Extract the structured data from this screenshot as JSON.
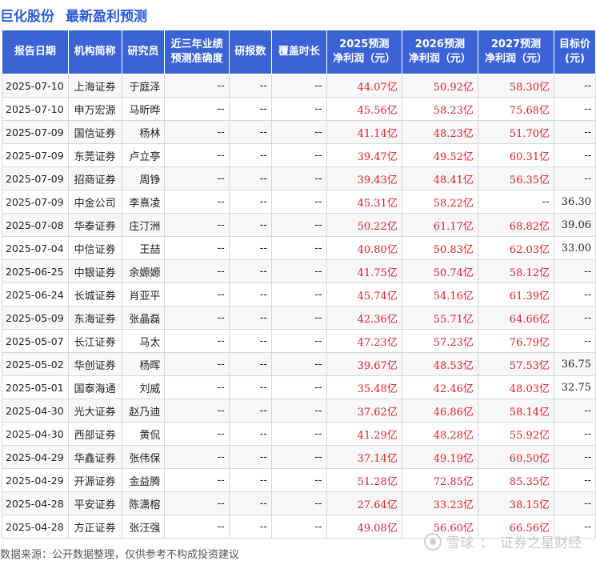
{
  "title": {
    "stock_name": "巨化股份",
    "subtitle": "最新盈利预测"
  },
  "table": {
    "headers": {
      "date": "报告日期",
      "org": "机构简称",
      "researcher": "研究员",
      "accuracy_line1": "近三年业绩",
      "accuracy_line2": "预测准确度",
      "report_count": "研报数",
      "coverage": "覆盖时长",
      "y2025_line1": "2025预测",
      "y2025_line2": "净利润（元）",
      "y2026_line1": "2026预测",
      "y2026_line2": "净利润（元）",
      "y2027_line1": "2027预测",
      "y2027_line2": "净利润（元）",
      "target_line1": "目标价",
      "target_line2": "(元)"
    },
    "rows": [
      {
        "date": "2025-07-10",
        "org": "上海证券",
        "researcher": "于庭泽",
        "accuracy": "--",
        "reports": "--",
        "coverage": "--",
        "p2025": "44.07亿",
        "p2026": "50.92亿",
        "p2027": "58.30亿",
        "target": "--"
      },
      {
        "date": "2025-07-10",
        "org": "申万宏源",
        "researcher": "马昕晔",
        "accuracy": "--",
        "reports": "--",
        "coverage": "--",
        "p2025": "45.56亿",
        "p2026": "58.23亿",
        "p2027": "75.68亿",
        "target": "--"
      },
      {
        "date": "2025-07-09",
        "org": "国信证券",
        "researcher": "杨林",
        "accuracy": "--",
        "reports": "--",
        "coverage": "--",
        "p2025": "41.14亿",
        "p2026": "48.23亿",
        "p2027": "51.70亿",
        "target": "--"
      },
      {
        "date": "2025-07-09",
        "org": "东莞证券",
        "researcher": "卢立亭",
        "accuracy": "--",
        "reports": "--",
        "coverage": "--",
        "p2025": "39.47亿",
        "p2026": "49.52亿",
        "p2027": "60.31亿",
        "target": "--"
      },
      {
        "date": "2025-07-09",
        "org": "招商证券",
        "researcher": "周铮",
        "accuracy": "--",
        "reports": "--",
        "coverage": "--",
        "p2025": "39.43亿",
        "p2026": "48.41亿",
        "p2027": "56.35亿",
        "target": "--"
      },
      {
        "date": "2025-07-09",
        "org": "中金公司",
        "researcher": "李熹凌",
        "accuracy": "--",
        "reports": "--",
        "coverage": "--",
        "p2025": "45.31亿",
        "p2026": "58.22亿",
        "p2027": "--",
        "target": "36.30"
      },
      {
        "date": "2025-07-08",
        "org": "华泰证券",
        "researcher": "庄汀洲",
        "accuracy": "--",
        "reports": "--",
        "coverage": "--",
        "p2025": "50.22亿",
        "p2026": "61.17亿",
        "p2027": "68.82亿",
        "target": "39.06"
      },
      {
        "date": "2025-07-04",
        "org": "中信证券",
        "researcher": "王喆",
        "accuracy": "--",
        "reports": "--",
        "coverage": "--",
        "p2025": "40.80亿",
        "p2026": "50.83亿",
        "p2027": "62.03亿",
        "target": "33.00"
      },
      {
        "date": "2025-06-25",
        "org": "中银证券",
        "researcher": "余嫄嫄",
        "accuracy": "--",
        "reports": "--",
        "coverage": "--",
        "p2025": "41.75亿",
        "p2026": "50.74亿",
        "p2027": "58.12亿",
        "target": "--"
      },
      {
        "date": "2025-06-24",
        "org": "长城证券",
        "researcher": "肖亚平",
        "accuracy": "--",
        "reports": "--",
        "coverage": "--",
        "p2025": "45.74亿",
        "p2026": "54.16亿",
        "p2027": "61.39亿",
        "target": "--"
      },
      {
        "date": "2025-05-09",
        "org": "东海证券",
        "researcher": "张晶磊",
        "accuracy": "--",
        "reports": "--",
        "coverage": "--",
        "p2025": "42.36亿",
        "p2026": "55.71亿",
        "p2027": "64.66亿",
        "target": "--"
      },
      {
        "date": "2025-05-07",
        "org": "长江证券",
        "researcher": "马太",
        "accuracy": "--",
        "reports": "--",
        "coverage": "--",
        "p2025": "47.23亿",
        "p2026": "57.23亿",
        "p2027": "76.79亿",
        "target": "--"
      },
      {
        "date": "2025-05-02",
        "org": "华创证券",
        "researcher": "杨晖",
        "accuracy": "--",
        "reports": "--",
        "coverage": "--",
        "p2025": "39.67亿",
        "p2026": "48.53亿",
        "p2027": "57.53亿",
        "target": "36.75"
      },
      {
        "date": "2025-05-01",
        "org": "国泰海通",
        "researcher": "刘威",
        "accuracy": "--",
        "reports": "--",
        "coverage": "--",
        "p2025": "35.48亿",
        "p2026": "42.46亿",
        "p2027": "48.03亿",
        "target": "32.75"
      },
      {
        "date": "2025-04-30",
        "org": "光大证券",
        "researcher": "赵乃迪",
        "accuracy": "--",
        "reports": "--",
        "coverage": "--",
        "p2025": "37.62亿",
        "p2026": "46.86亿",
        "p2027": "58.14亿",
        "target": "--"
      },
      {
        "date": "2025-04-30",
        "org": "西部证券",
        "researcher": "黄侃",
        "accuracy": "--",
        "reports": "--",
        "coverage": "--",
        "p2025": "41.29亿",
        "p2026": "48.28亿",
        "p2027": "55.92亿",
        "target": "--"
      },
      {
        "date": "2025-04-29",
        "org": "华鑫证券",
        "researcher": "张伟保",
        "accuracy": "--",
        "reports": "--",
        "coverage": "--",
        "p2025": "37.14亿",
        "p2026": "49.19亿",
        "p2027": "60.50亿",
        "target": "--"
      },
      {
        "date": "2025-04-29",
        "org": "开源证券",
        "researcher": "金益腾",
        "accuracy": "--",
        "reports": "--",
        "coverage": "--",
        "p2025": "51.28亿",
        "p2026": "72.85亿",
        "p2027": "85.35亿",
        "target": "--"
      },
      {
        "date": "2025-04-28",
        "org": "平安证券",
        "researcher": "陈潇榕",
        "accuracy": "--",
        "reports": "--",
        "coverage": "--",
        "p2025": "27.64亿",
        "p2026": "33.23亿",
        "p2027": "38.15亿",
        "target": "--"
      },
      {
        "date": "2025-04-28",
        "org": "方正证券",
        "researcher": "张汪强",
        "accuracy": "--",
        "reports": "--",
        "coverage": "--",
        "p2025": "49.08亿",
        "p2026": "56.60亿",
        "p2027": "66.56亿",
        "target": "--"
      }
    ]
  },
  "footer": {
    "source": "数据来源：公开数据整理，仅供参考不构成投资建议"
  },
  "brand": {
    "name_left": "雪球",
    "divider": "：",
    "name_right": "证券之星财经"
  },
  "watermark": {
    "text": "证券之星"
  },
  "colors": {
    "title": "#2a5bd7",
    "header_bg": "#3b63d6",
    "value_red": "#e0202c"
  }
}
